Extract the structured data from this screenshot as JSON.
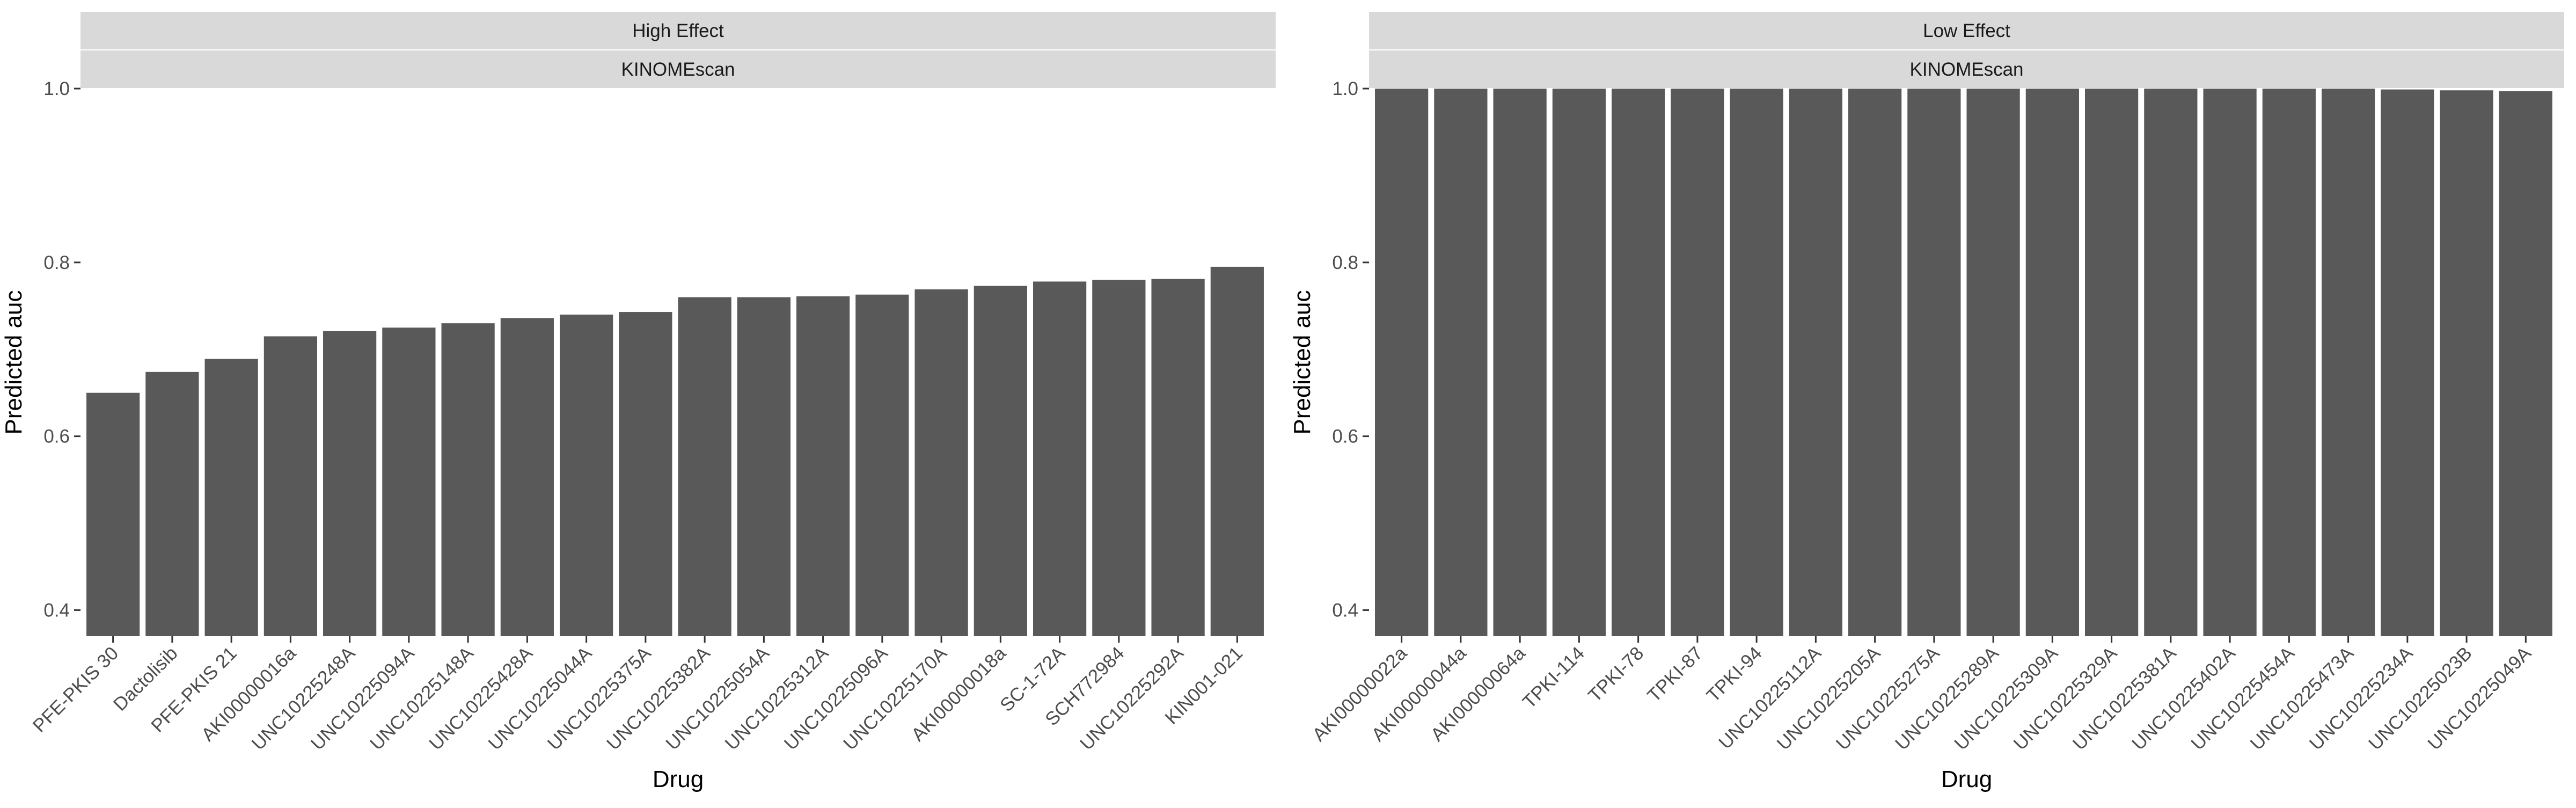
{
  "colors": {
    "bar": "#595959",
    "strip_bg": "#d9d9d9",
    "axis_text": "#4d4d4d",
    "title_text": "#000000",
    "strip_text": "#1a1a1a"
  },
  "chart_data": [
    {
      "type": "bar",
      "strip_labels": [
        "High Effect",
        "KINOMEscan"
      ],
      "xlabel": "Drug",
      "ylabel": "Predicted auc",
      "ylim": [
        0.37,
        1.0
      ],
      "yticks": [
        0.4,
        0.6,
        0.8,
        1.0
      ],
      "ytick_labels": [
        "0.4",
        "0.6",
        "0.8",
        "1.0"
      ],
      "grid": false,
      "legend": "none",
      "categories": [
        "PFE-PKIS 30",
        "Dactolisib",
        "PFE-PKIS 21",
        "AKI00000016a",
        "UNC10225248A",
        "UNC10225094A",
        "UNC10225148A",
        "UNC10225428A",
        "UNC10225044A",
        "UNC10225375A",
        "UNC10225382A",
        "UNC10225054A",
        "UNC10225312A",
        "UNC10225096A",
        "UNC10225170A",
        "AKI00000018a",
        "SC-1-72A",
        "SCH772984",
        "UNC10225292A",
        "KIN001-021"
      ],
      "values": [
        0.65,
        0.674,
        0.689,
        0.715,
        0.721,
        0.725,
        0.73,
        0.736,
        0.74,
        0.743,
        0.76,
        0.76,
        0.761,
        0.763,
        0.769,
        0.773,
        0.778,
        0.78,
        0.781,
        0.795
      ]
    },
    {
      "type": "bar",
      "strip_labels": [
        "Low Effect",
        "KINOMEscan"
      ],
      "xlabel": "Drug",
      "ylabel": "Predicted auc",
      "ylim": [
        0.37,
        1.0
      ],
      "yticks": [
        0.4,
        0.6,
        0.8,
        1.0
      ],
      "ytick_labels": [
        "0.4",
        "0.6",
        "0.8",
        "1.0"
      ],
      "grid": false,
      "legend": "none",
      "categories": [
        "AKI00000022a",
        "AKI00000044a",
        "AKI00000064a",
        "TPKI-114",
        "TPKI-78",
        "TPKI-87",
        "TPKI-94",
        "UNC10225112A",
        "UNC10225205A",
        "UNC10225275A",
        "UNC10225289A",
        "UNC10225309A",
        "UNC10225329A",
        "UNC10225381A",
        "UNC10225402A",
        "UNC10225454A",
        "UNC10225473A",
        "UNC10225234A",
        "UNC10225023B",
        "UNC10225049A"
      ],
      "values": [
        1.0,
        1.0,
        1.0,
        1.0,
        1.0,
        1.0,
        1.0,
        1.0,
        1.0,
        1.0,
        1.0,
        1.0,
        1.0,
        1.0,
        1.0,
        1.0,
        1.0,
        0.999,
        0.998,
        0.997
      ]
    }
  ]
}
